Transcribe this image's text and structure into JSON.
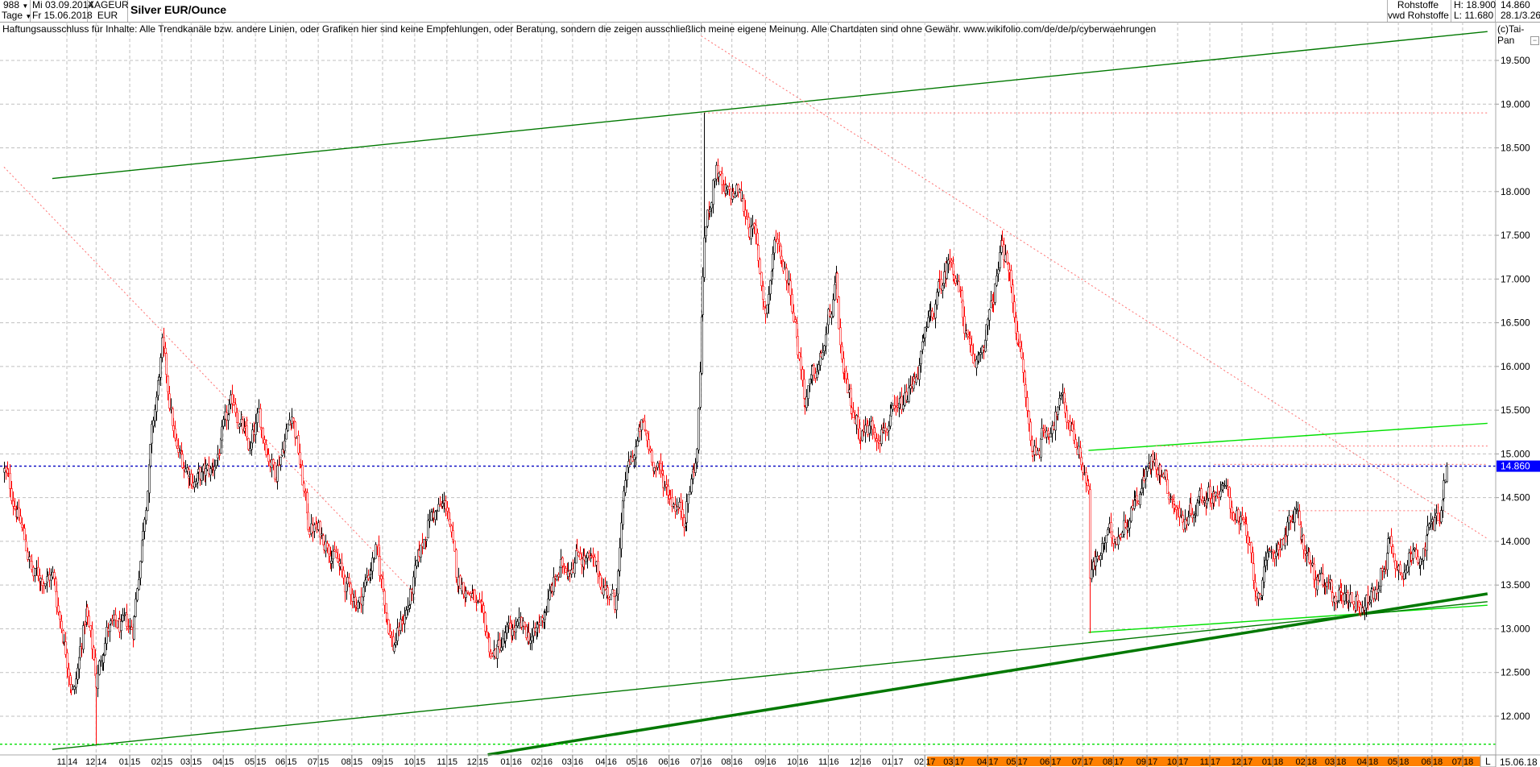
{
  "header": {
    "count_value": "988",
    "interval": "Tage",
    "date_from": "Mi 03.09.2014",
    "date_to": "Fr 15.06.2018",
    "symbol": "XAGEUR",
    "currency": "EUR",
    "title": "Silver EUR/Ounce",
    "source_1": "Rohstoffe",
    "source_2": "vwd Rohstoffe",
    "high": "H: 18.900",
    "low": "L: 11.680",
    "last": "14.860",
    "extra": "28.1/3.260"
  },
  "disclaimer": "Haftungsausschluss für Inhalte: Alle Trendkanäle bzw. andere Linien, oder Grafiken hier sind keine Empfehlungen, oder Beratung, sondern die zeigen ausschließlich meine eigene Meinung. Alle Chartdaten sind ohne Gewähr.  www.wikifolio.com/de/de/p/cyberwaehrungen",
  "copyright": "(c)Tai-Pan",
  "footer": {
    "mode_label": "L",
    "last_date": "15.06.18"
  },
  "colors": {
    "up": "#000000",
    "down": "#ff0000",
    "channel_dark": "#007800",
    "channel_light": "#00e000",
    "resistance": "#ff7070",
    "last_line": "#0000c0",
    "last_badge": "#0000ff",
    "future_band": "#ff8000",
    "grid": "#c0c0c0"
  },
  "chart_data": {
    "type": "candlestick",
    "title": "Silver EUR/Ounce",
    "x_range": [
      "2014-09-03",
      "2018-06-15"
    ],
    "ylim": [
      11.5,
      19.9
    ],
    "grid": true,
    "y_ticks": [
      "12.000",
      "12.500",
      "13.000",
      "13.500",
      "14.000",
      "14.500",
      "15.000",
      "15.500",
      "16.000",
      "16.500",
      "17.000",
      "17.500",
      "18.000",
      "18.500",
      "19.000",
      "19.500"
    ],
    "x_ticks": [
      [
        "11",
        "14",
        "2014-11-01"
      ],
      [
        "12",
        "14",
        "2014-12-01"
      ],
      [
        "01",
        "15",
        "2015-01-01"
      ],
      [
        "02",
        "15",
        "2015-02-01"
      ],
      [
        "03",
        "15",
        "2015-03-01"
      ],
      [
        "04",
        "15",
        "2015-04-01"
      ],
      [
        "05",
        "15",
        "2015-05-01"
      ],
      [
        "06",
        "15",
        "2015-06-01"
      ],
      [
        "07",
        "15",
        "2015-07-01"
      ],
      [
        "08",
        "15",
        "2015-08-01"
      ],
      [
        "09",
        "15",
        "2015-09-01"
      ],
      [
        "10",
        "15",
        "2015-10-01"
      ],
      [
        "11",
        "15",
        "2015-11-01"
      ],
      [
        "12",
        "15",
        "2015-12-01"
      ],
      [
        "01",
        "16",
        "2016-01-01"
      ],
      [
        "02",
        "16",
        "2016-02-01"
      ],
      [
        "03",
        "16",
        "2016-03-01"
      ],
      [
        "04",
        "16",
        "2016-04-01"
      ],
      [
        "05",
        "16",
        "2016-05-01"
      ],
      [
        "06",
        "16",
        "2016-06-01"
      ],
      [
        "07",
        "16",
        "2016-07-01"
      ],
      [
        "08",
        "16",
        "2016-08-01"
      ],
      [
        "09",
        "16",
        "2016-09-01"
      ],
      [
        "10",
        "16",
        "2016-10-01"
      ],
      [
        "11",
        "16",
        "2016-11-01"
      ],
      [
        "12",
        "16",
        "2016-12-01"
      ],
      [
        "01",
        "17",
        "2017-01-01"
      ],
      [
        "02",
        "17",
        "2017-02-01"
      ],
      [
        "03",
        "17",
        "2017-03-01"
      ],
      [
        "04",
        "17",
        "2017-04-01"
      ],
      [
        "05",
        "17",
        "2017-05-01"
      ],
      [
        "06",
        "17",
        "2017-06-01"
      ],
      [
        "07",
        "17",
        "2017-07-01"
      ],
      [
        "08",
        "17",
        "2017-08-01"
      ],
      [
        "09",
        "17",
        "2017-09-01"
      ],
      [
        "10",
        "17",
        "2017-10-01"
      ],
      [
        "11",
        "17",
        "2017-11-01"
      ],
      [
        "12",
        "17",
        "2017-12-01"
      ],
      [
        "01",
        "18",
        "2018-01-01"
      ],
      [
        "02",
        "18",
        "2018-02-01"
      ],
      [
        "03",
        "18",
        "2018-03-01"
      ],
      [
        "04",
        "18",
        "2018-04-01"
      ],
      [
        "05",
        "18",
        "2018-05-01"
      ],
      [
        "06",
        "18",
        "2018-06-01"
      ],
      [
        "07",
        "18",
        "2018-07-01"
      ]
    ],
    "future_band_from": "2017-02-01",
    "last_price": 14.86,
    "period_high": {
      "date": "2016-07-05",
      "value": 18.9
    },
    "period_low": {
      "date": "2014-12-01",
      "value": 11.68
    },
    "other_extremes": [
      {
        "date": "2017-07-10",
        "low": 12.95
      }
    ],
    "approx_closes": [
      [
        "2014-09-03",
        14.8
      ],
      [
        "2014-09-15",
        14.4
      ],
      [
        "2014-10-01",
        13.6
      ],
      [
        "2014-10-20",
        13.6
      ],
      [
        "2014-11-05",
        12.5
      ],
      [
        "2014-11-10",
        12.3
      ],
      [
        "2014-11-20",
        13.2
      ],
      [
        "2014-12-01",
        12.4
      ],
      [
        "2014-12-10",
        13.0
      ],
      [
        "2015-01-05",
        13.0
      ],
      [
        "2015-01-22",
        15.2
      ],
      [
        "2015-02-01",
        16.2
      ],
      [
        "2015-02-15",
        15.0
      ],
      [
        "2015-03-05",
        14.7
      ],
      [
        "2015-03-20",
        14.8
      ],
      [
        "2015-04-10",
        15.6
      ],
      [
        "2015-04-25",
        15.0
      ],
      [
        "2015-05-05",
        15.4
      ],
      [
        "2015-05-20",
        14.8
      ],
      [
        "2015-06-05",
        15.5
      ],
      [
        "2015-06-20",
        14.2
      ],
      [
        "2015-07-10",
        14.0
      ],
      [
        "2015-07-25",
        13.5
      ],
      [
        "2015-08-10",
        13.3
      ],
      [
        "2015-08-25",
        13.9
      ],
      [
        "2015-09-10",
        12.8
      ],
      [
        "2015-09-25",
        13.3
      ],
      [
        "2015-10-15",
        14.3
      ],
      [
        "2015-11-01",
        14.4
      ],
      [
        "2015-11-10",
        13.6
      ],
      [
        "2015-11-25",
        13.4
      ],
      [
        "2015-12-15",
        12.7
      ],
      [
        "2016-01-05",
        13.0
      ],
      [
        "2016-01-25",
        12.9
      ],
      [
        "2016-02-15",
        13.6
      ],
      [
        "2016-03-05",
        13.9
      ],
      [
        "2016-03-25",
        13.6
      ],
      [
        "2016-04-10",
        13.3
      ],
      [
        "2016-04-20",
        14.7
      ],
      [
        "2016-05-05",
        15.3
      ],
      [
        "2016-05-25",
        14.7
      ],
      [
        "2016-06-15",
        14.3
      ],
      [
        "2016-06-28",
        15.0
      ],
      [
        "2016-07-05",
        17.5
      ],
      [
        "2016-07-15",
        18.3
      ],
      [
        "2016-07-25",
        17.9
      ],
      [
        "2016-08-05",
        18.0
      ],
      [
        "2016-08-20",
        17.5
      ],
      [
        "2016-08-25",
        17.2
      ],
      [
        "2016-09-01",
        16.6
      ],
      [
        "2016-09-12",
        17.5
      ],
      [
        "2016-09-25",
        16.9
      ],
      [
        "2016-10-10",
        15.6
      ],
      [
        "2016-10-25",
        16.1
      ],
      [
        "2016-11-08",
        16.9
      ],
      [
        "2016-11-15",
        15.8
      ],
      [
        "2016-11-30",
        15.3
      ],
      [
        "2016-12-15",
        15.3
      ],
      [
        "2017-01-05",
        15.4
      ],
      [
        "2017-01-20",
        15.8
      ],
      [
        "2017-02-05",
        16.5
      ],
      [
        "2017-02-25",
        17.3
      ],
      [
        "2017-03-10",
        16.5
      ],
      [
        "2017-03-20",
        15.9
      ],
      [
        "2017-04-05",
        16.6
      ],
      [
        "2017-04-15",
        17.4
      ],
      [
        "2017-04-25",
        16.9
      ],
      [
        "2017-05-05",
        15.9
      ],
      [
        "2017-05-15",
        15.0
      ],
      [
        "2017-05-30",
        15.3
      ],
      [
        "2017-06-10",
        15.6
      ],
      [
        "2017-06-25",
        15.2
      ],
      [
        "2017-07-07",
        14.6
      ],
      [
        "2017-07-10",
        13.6
      ],
      [
        "2017-07-25",
        14.0
      ],
      [
        "2017-08-10",
        14.2
      ],
      [
        "2017-08-25",
        14.6
      ],
      [
        "2017-09-08",
        15.0
      ],
      [
        "2017-09-20",
        14.7
      ],
      [
        "2017-10-05",
        14.2
      ],
      [
        "2017-10-20",
        14.5
      ],
      [
        "2017-11-05",
        14.6
      ],
      [
        "2017-11-20",
        14.5
      ],
      [
        "2017-12-05",
        14.1
      ],
      [
        "2017-12-15",
        13.4
      ],
      [
        "2018-01-05",
        14.0
      ],
      [
        "2018-01-20",
        14.3
      ],
      [
        "2018-02-08",
        13.6
      ],
      [
        "2018-02-20",
        13.4
      ],
      [
        "2018-03-10",
        13.4
      ],
      [
        "2018-03-28",
        13.3
      ],
      [
        "2018-04-10",
        13.4
      ],
      [
        "2018-04-20",
        14.0
      ],
      [
        "2018-05-01",
        13.7
      ],
      [
        "2018-05-20",
        13.9
      ],
      [
        "2018-06-05",
        14.2
      ],
      [
        "2018-06-10",
        14.4
      ],
      [
        "2018-06-15",
        14.86
      ]
    ],
    "trendlines": [
      {
        "kind": "channel_dark",
        "style": "solid",
        "from": [
          "2014-10-20",
          18.15
        ],
        "to": [
          "2018-07-25",
          19.83
        ]
      },
      {
        "kind": "resistance",
        "style": "dotted",
        "from": [
          "2014-09-03",
          18.28
        ],
        "to": [
          "2015-10-01",
          13.4
        ]
      },
      {
        "kind": "resistance",
        "style": "dotted",
        "from": [
          "2016-07-01",
          19.78
        ],
        "to": [
          "2018-07-25",
          14.03
        ]
      },
      {
        "kind": "resistance",
        "style": "dotted",
        "from": [
          "2016-07-05",
          18.9
        ],
        "to": [
          "2018-07-25",
          18.9
        ]
      },
      {
        "kind": "channel_light",
        "style": "solid",
        "from": [
          "2017-07-07",
          15.04
        ],
        "to": [
          "2018-07-25",
          15.35
        ]
      },
      {
        "kind": "resistance",
        "style": "dotted",
        "from": [
          "2017-09-10",
          15.09
        ],
        "to": [
          "2018-07-25",
          15.09
        ]
      },
      {
        "kind": "resistance",
        "style": "dotted",
        "from": [
          "2017-11-05",
          14.88
        ],
        "to": [
          "2018-07-25",
          14.88
        ]
      },
      {
        "kind": "resistance",
        "style": "dotted",
        "from": [
          "2018-01-05",
          14.35
        ],
        "to": [
          "2018-06-12",
          14.35
        ]
      },
      {
        "kind": "resistance",
        "style": "dotted",
        "from": [
          "2018-04-20",
          14.0
        ],
        "to": [
          "2018-05-05",
          14.0
        ]
      },
      {
        "kind": "channel_light",
        "style": "solid",
        "from": [
          "2017-07-07",
          12.96
        ],
        "to": [
          "2018-07-25",
          13.27
        ]
      },
      {
        "kind": "channel_dark",
        "style": "solid",
        "from": [
          "2014-10-20",
          11.62
        ],
        "to": [
          "2018-07-25",
          13.31
        ]
      },
      {
        "kind": "channel_dark",
        "style": "thick",
        "from": [
          "2015-12-10",
          11.56
        ],
        "to": [
          "2018-07-25",
          13.4
        ]
      },
      {
        "kind": "channel_light",
        "style": "dashed-horizontal",
        "value": 11.68
      },
      {
        "kind": "last_line",
        "style": "dashed-horizontal",
        "value": 14.86
      }
    ]
  }
}
